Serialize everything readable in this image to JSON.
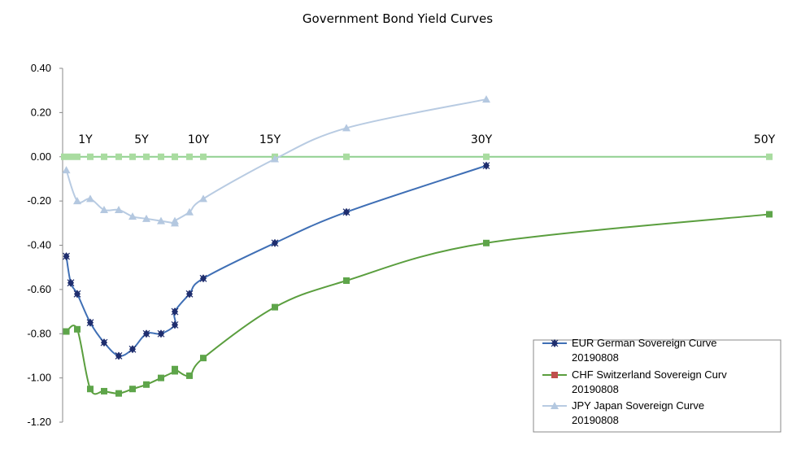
{
  "chart_data": {
    "type": "line",
    "title": "Government Bond Yield Curves",
    "xlabel": "",
    "ylabel": "",
    "ylim": [
      -1.2,
      0.4
    ],
    "yticks": [
      "0.40",
      "0.20",
      "0.00",
      "-0.20",
      "-0.40",
      "-0.60",
      "-0.80",
      "-1.00",
      "-1.20"
    ],
    "xlim": [
      0,
      50
    ],
    "xticks": [
      {
        "x": 1,
        "label": "1Y"
      },
      {
        "x": 5,
        "label": "5Y"
      },
      {
        "x": 10,
        "label": "10Y"
      },
      {
        "x": 15,
        "label": "15Y"
      },
      {
        "x": 30,
        "label": "30Y"
      },
      {
        "x": 50,
        "label": "50Y"
      }
    ],
    "grid": false,
    "legend_position": "bottom-right",
    "series": [
      {
        "name": "EUR German Sovereign Curve 20190808",
        "color": "#3C6EB4",
        "marker": "diamond",
        "x": [
          0.08,
          0.25,
          0.5,
          1,
          2,
          3,
          4,
          5,
          6,
          7,
          8,
          9,
          10,
          15,
          20,
          30
        ],
        "y": [
          -0.45,
          -0.57,
          -0.62,
          -0.75,
          -0.84,
          -0.9,
          -0.87,
          -0.8,
          -0.8,
          -0.76,
          -0.7,
          -0.62,
          -0.55,
          -0.39,
          -0.25,
          -0.04
        ]
      },
      {
        "name": "CHF Switzerland Sovereign Curv 20190808",
        "color": "#4E9A3C",
        "marker": "square",
        "x": [
          0.08,
          0.5,
          1,
          2,
          3,
          4,
          5,
          6,
          7,
          8,
          9,
          10,
          15,
          20,
          30,
          50
        ],
        "y": [
          -0.79,
          -0.78,
          -1.05,
          -1.06,
          -1.07,
          -1.05,
          -1.03,
          -1.0,
          -0.97,
          -0.96,
          -0.99,
          -0.91,
          -0.68,
          -0.56,
          -0.39,
          -0.26
        ]
      },
      {
        "name": "JPY Japan Sovereign Curve 20190808",
        "color": "#B4C8E0",
        "marker": "triangle",
        "x": [
          0.08,
          0.5,
          1,
          2,
          3,
          4,
          5,
          6,
          7,
          8,
          9,
          10,
          15,
          20,
          30
        ],
        "y": [
          -0.06,
          -0.2,
          -0.19,
          -0.24,
          -0.24,
          -0.27,
          -0.28,
          -0.29,
          -0.3,
          -0.29,
          -0.25,
          -0.19,
          -0.01,
          0.13,
          0.26
        ]
      }
    ],
    "zero_line_markers_x": [
      0,
      0.25,
      0.5,
      1,
      2,
      3,
      4,
      5,
      6,
      7,
      8,
      9,
      10,
      15,
      20,
      30,
      50
    ]
  }
}
